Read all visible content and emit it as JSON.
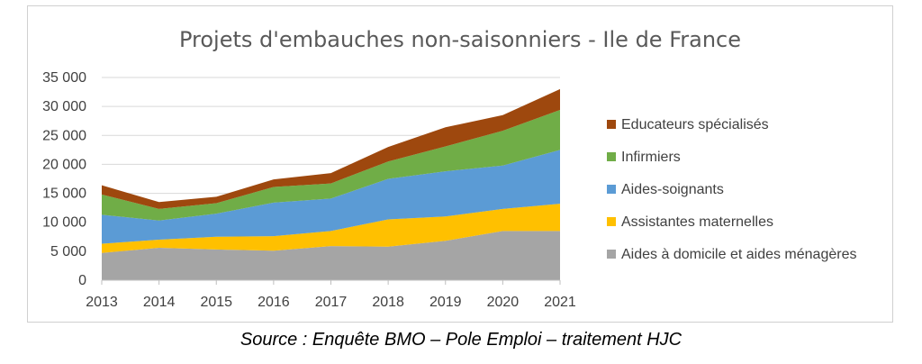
{
  "chart_data": {
    "type": "area",
    "stacked": true,
    "title": "Projets d'embauches non-saisonniers - Ile de France",
    "x": [
      "2013",
      "2014",
      "2015",
      "2016",
      "2017",
      "2018",
      "2019",
      "2020",
      "2021"
    ],
    "ylim": [
      0,
      35000
    ],
    "yticks": [
      "0",
      "5 000",
      "10 000",
      "15 000",
      "20 000",
      "25 000",
      "30 000",
      "35 000"
    ],
    "grid": true,
    "legend_position": "right",
    "series": [
      {
        "name": "Aides à domicile et aides ménagères",
        "color": "#a5a5a5",
        "values": [
          4700,
          5600,
          5300,
          5100,
          5900,
          5800,
          6800,
          8500,
          8500
        ]
      },
      {
        "name": "Assistantes maternelles",
        "color": "#ffc000",
        "values": [
          1600,
          1400,
          2200,
          2500,
          2600,
          4700,
          4200,
          3800,
          4700
        ]
      },
      {
        "name": "Aides-soignants",
        "color": "#5b9bd5",
        "values": [
          5000,
          3300,
          4000,
          5800,
          5600,
          7000,
          7800,
          7500,
          9300
        ]
      },
      {
        "name": "Infirmiers",
        "color": "#70ad47",
        "values": [
          3500,
          2000,
          1800,
          2700,
          2600,
          3000,
          4300,
          6000,
          6900
        ]
      },
      {
        "name": "Educateurs spécialisés",
        "color": "#9e480e",
        "values": [
          1600,
          1200,
          1100,
          1300,
          1800,
          2500,
          3300,
          2700,
          3600
        ]
      }
    ]
  },
  "source": "Source : Enquête BMO – Pole Emploi – traitement HJC"
}
